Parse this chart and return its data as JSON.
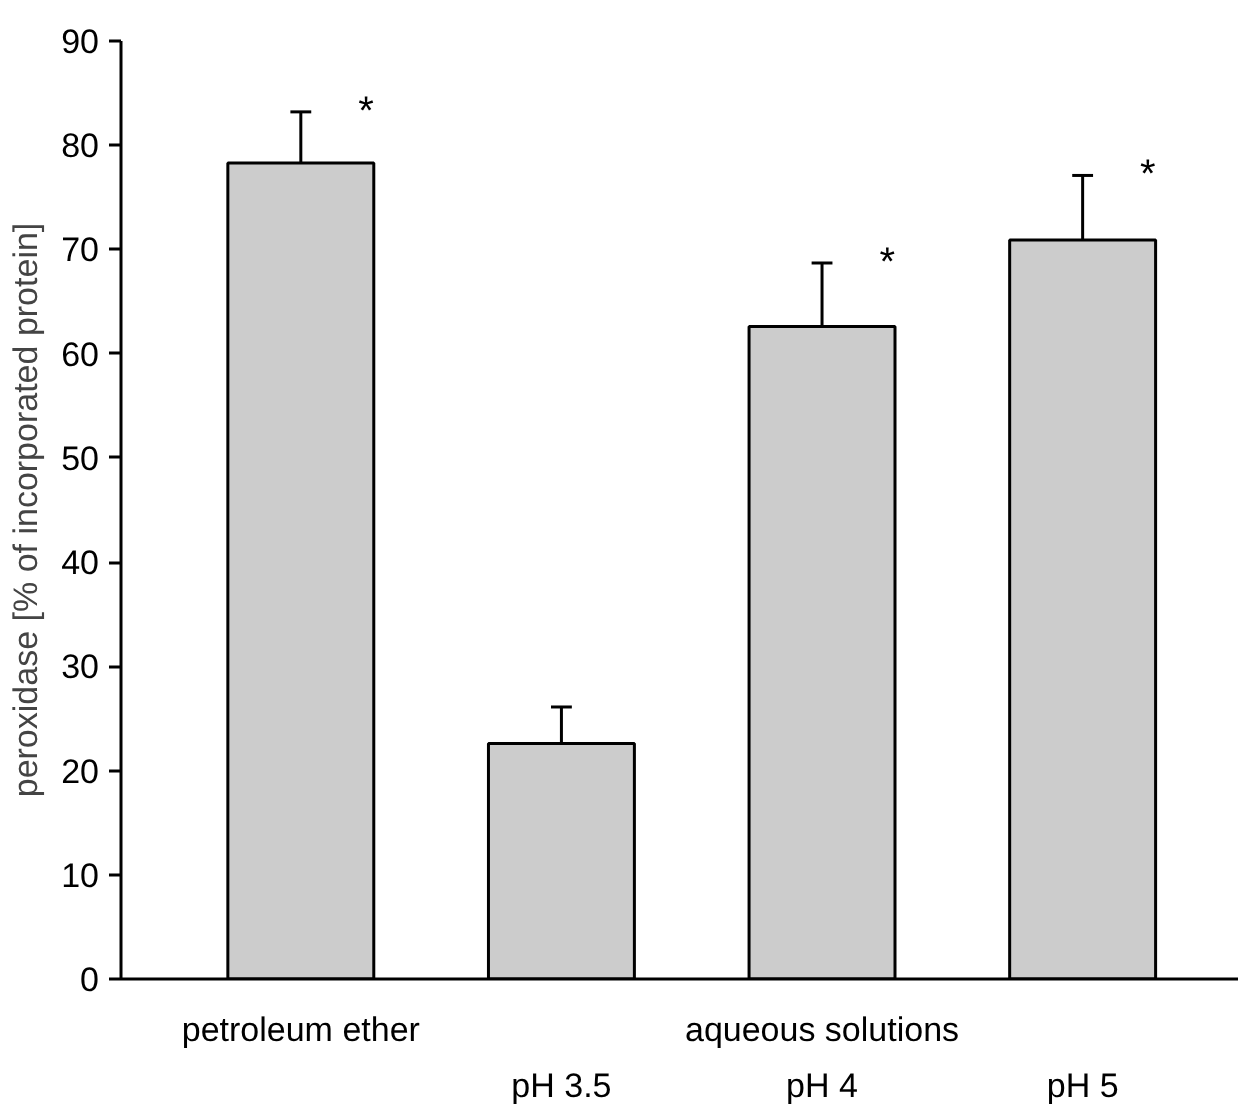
{
  "chart_data": {
    "type": "bar",
    "ylabel": "peroxidase [% of incorporated protein]",
    "categories": [
      "petroleum ether",
      "pH 3.5",
      "pH 4",
      "pH 5"
    ],
    "values": [
      78.3,
      22.6,
      62.6,
      70.9
    ],
    "color": "#cccccc",
    "errors": [
      [
        78.3,
        83.2
      ],
      [
        22.6,
        26.1
      ],
      [
        62.6,
        68.7
      ],
      [
        70.9,
        77.1
      ]
    ],
    "ylim": [
      0,
      90
    ],
    "yticks": [
      0,
      10,
      20,
      30,
      40,
      50,
      60,
      70,
      80,
      90
    ],
    "grid": false,
    "annotations": [
      "aqueous solutions",
      {
        "text": "*",
        "x": "petroleum ether",
        "y": 78.3
      },
      {
        "text": "*",
        "x": "pH 4",
        "y": 62.6
      },
      {
        "text": "*",
        "x": "pH 5",
        "y": 70.9
      }
    ]
  }
}
